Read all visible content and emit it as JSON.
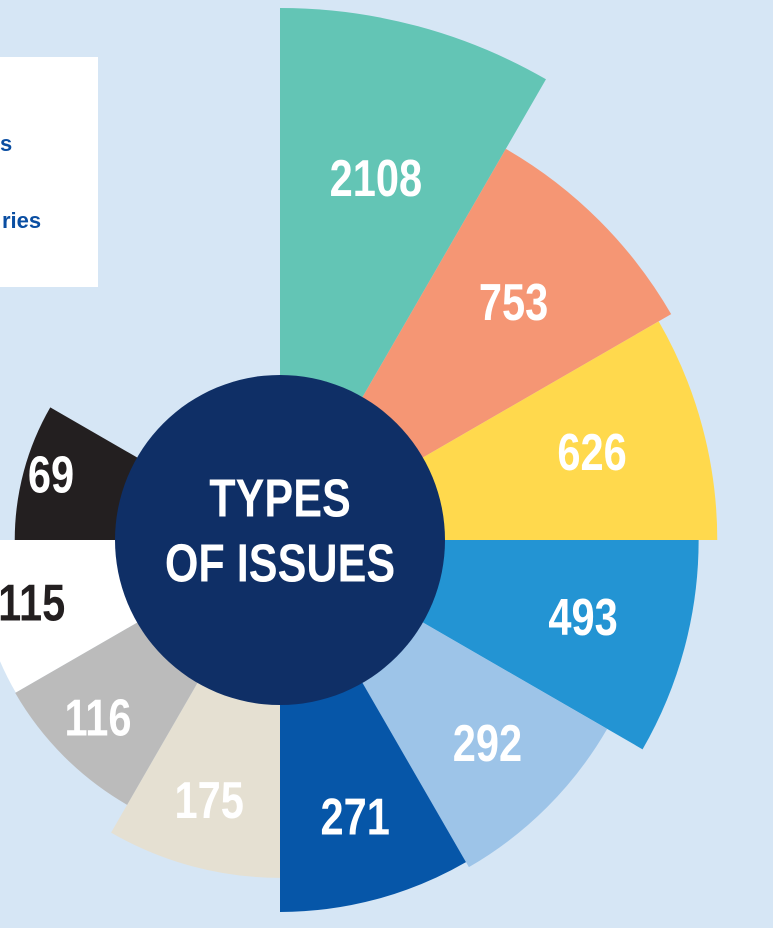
{
  "chart_data": {
    "type": "rose",
    "title_lines": [
      "TYPES",
      "OF ISSUES"
    ],
    "values": [
      2108,
      753,
      626,
      493,
      292,
      271,
      175,
      116,
      115,
      69
    ],
    "colors": [
      "#63c5b5",
      "#f59674",
      "#ffd94d",
      "#2394d3",
      "#9dc4e8",
      "#0656a8",
      "#e5e0d2",
      "#bbbbbb",
      "#ffffff",
      "#231f20"
    ],
    "label_colors": [
      "#ffffff",
      "#ffffff",
      "#ffffff",
      "#ffffff",
      "#ffffff",
      "#ffffff",
      "#ffffff",
      "#ffffff",
      "#231f20",
      "#ffffff"
    ],
    "log_scale": true
  },
  "legend": {
    "entries": [
      "s",
      "ries"
    ]
  }
}
